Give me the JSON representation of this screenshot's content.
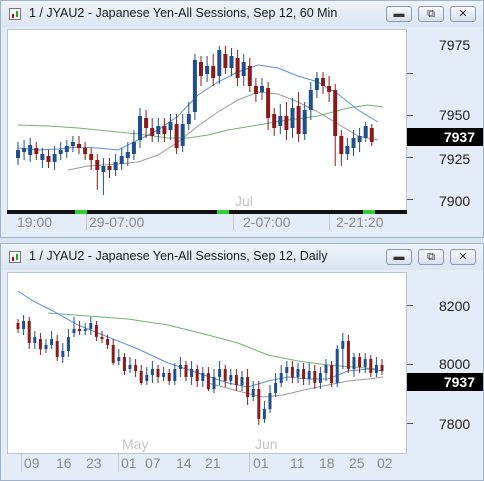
{
  "windows": [
    {
      "title": "1 / JYAU2 - Japanese Yen-All Sessions, Sep 12, 60 Min",
      "y_labels": [
        "7975",
        "7950",
        "7925",
        "7900"
      ],
      "last_price": "7937",
      "x_labels": [
        "19:00",
        "29-07:00",
        "2-07:00",
        "2-21:20"
      ],
      "month_label": "Jul"
    },
    {
      "title": "1 / JYAU2 - Japanese Yen-All Sessions, Sep 12, Daily",
      "y_labels": [
        "8200",
        "8000",
        "7800"
      ],
      "last_price": "7937",
      "x_labels": [
        "09",
        "16",
        "23",
        "01",
        "07",
        "14",
        "21",
        "01",
        "11",
        "18",
        "25",
        "02"
      ],
      "month_labels": [
        "May",
        "Jun"
      ]
    }
  ],
  "controls": {
    "minimize": "minimize-icon",
    "restore": "restore-icon",
    "close": "close-icon"
  },
  "colors": {
    "up": "#1f4e8c",
    "down": "#8b1a1a",
    "ma_fast": "#5b8fd0",
    "ma_mid": "#6fb36f",
    "ma_slow": "#9a9a9a",
    "session_green": "#33cc33"
  }
}
